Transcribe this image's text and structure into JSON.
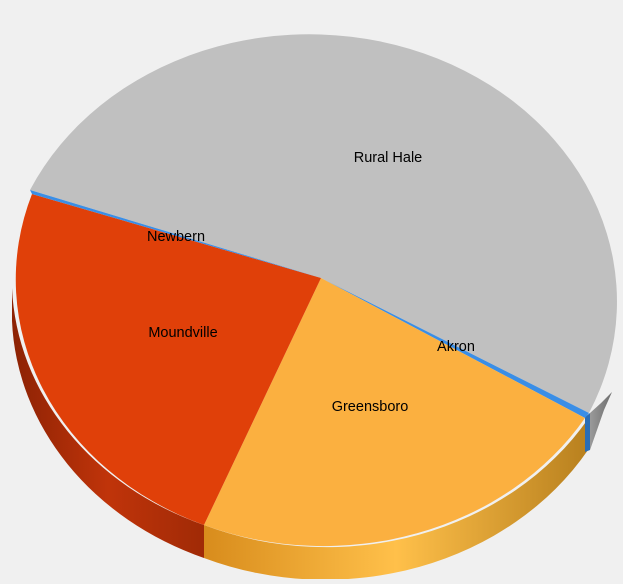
{
  "chart_data": {
    "type": "pie",
    "style": "3d",
    "categories": [
      "Rural Hale",
      "Akron",
      "Greensboro",
      "Moundville",
      "Newbern"
    ],
    "values": [
      53.4,
      0.7,
      21.6,
      24.0,
      0.3
    ],
    "colors": [
      "#c0c0c0",
      "#3a8ee6",
      "#fbb040",
      "#e04009",
      "#3a8ee6"
    ],
    "side_colors": [
      "#8c8c8c",
      "#2a6db6",
      "#c98a2a",
      "#a32a06",
      "#2a6db6"
    ],
    "labels": {
      "rural_hale": "Rural Hale",
      "akron": "Akron",
      "greensboro": "Greensboro",
      "moundville": "Moundville",
      "newbern": "Newbern"
    }
  }
}
